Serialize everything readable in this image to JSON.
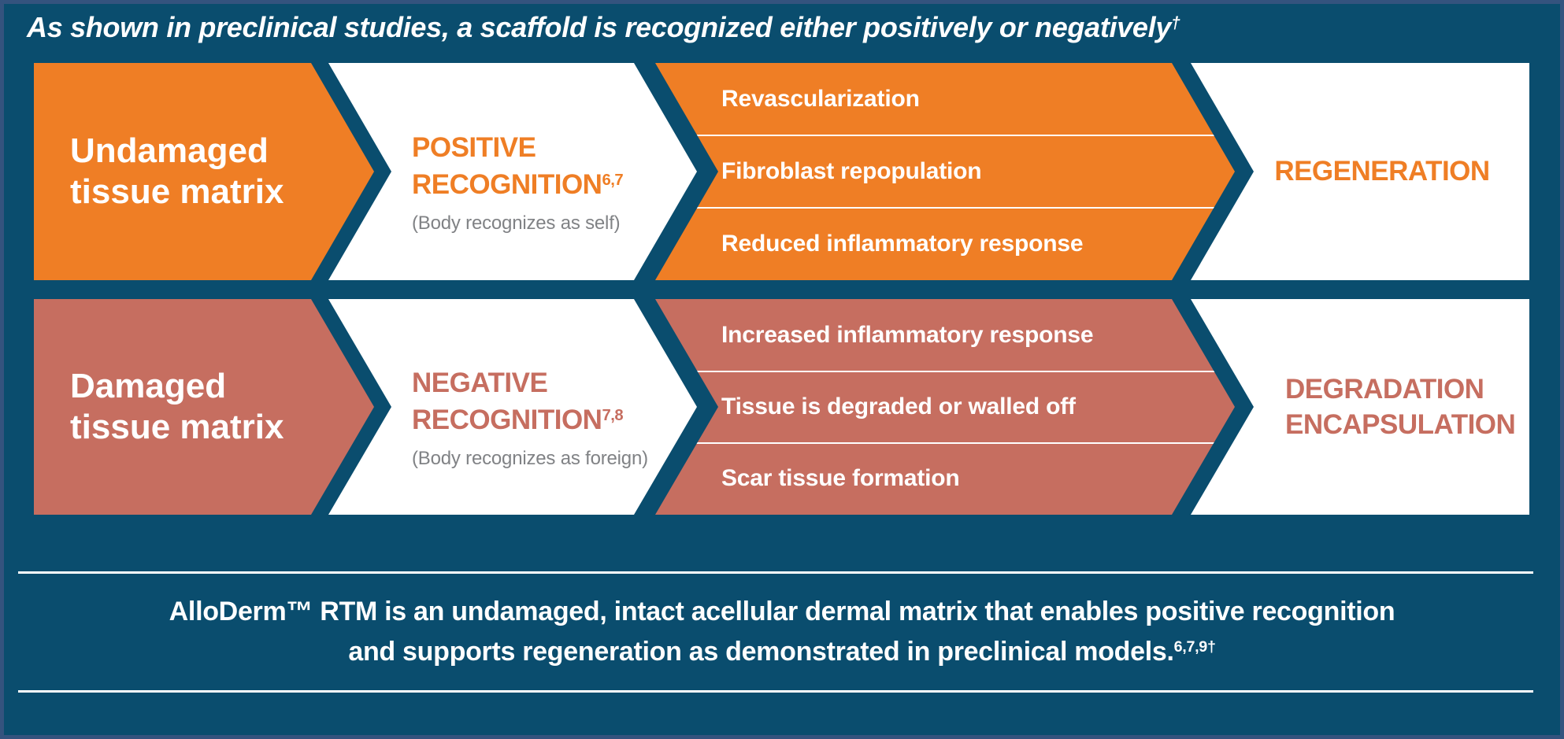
{
  "title": {
    "text": "As shown in preclinical studies, a scaffold is recognized either positively or negatively",
    "sup": "†"
  },
  "colors": {
    "background": "#0A4D6E",
    "border": "#34537E",
    "positive_accent": "#EF7E25",
    "negative_accent": "#C66E60",
    "subtext_gray": "#808285",
    "text_white": "#FFFFFF"
  },
  "rows": [
    {
      "id": "positive-pathway",
      "source": {
        "line1": "Undamaged",
        "line2": "tissue matrix"
      },
      "recognition": {
        "headline_line1": "POSITIVE",
        "headline_line2": "RECOGNITION",
        "sup": "6,7",
        "subtext": "(Body recognizes as self)"
      },
      "effects": [
        "Revascularization",
        "Fibroblast repopulation",
        "Reduced inflammatory response"
      ],
      "outcome": [
        "REGENERATION"
      ]
    },
    {
      "id": "negative-pathway",
      "source": {
        "line1": "Damaged",
        "line2": "tissue matrix"
      },
      "recognition": {
        "headline_line1": "NEGATIVE",
        "headline_line2": "RECOGNITION",
        "sup": "7,8",
        "subtext": "(Body recognizes as foreign)"
      },
      "effects": [
        "Increased inflammatory response",
        "Tissue is degraded or walled off",
        "Scar tissue formation"
      ],
      "outcome": [
        "DEGRADATION",
        "ENCAPSULATION"
      ]
    }
  ],
  "footer": {
    "line1": "AlloDerm™ RTM is an undamaged, intact acellular dermal matrix that enables positive recognition",
    "line2": "and supports regeneration as demonstrated in preclinical models.",
    "sup": "6,7,9†"
  }
}
